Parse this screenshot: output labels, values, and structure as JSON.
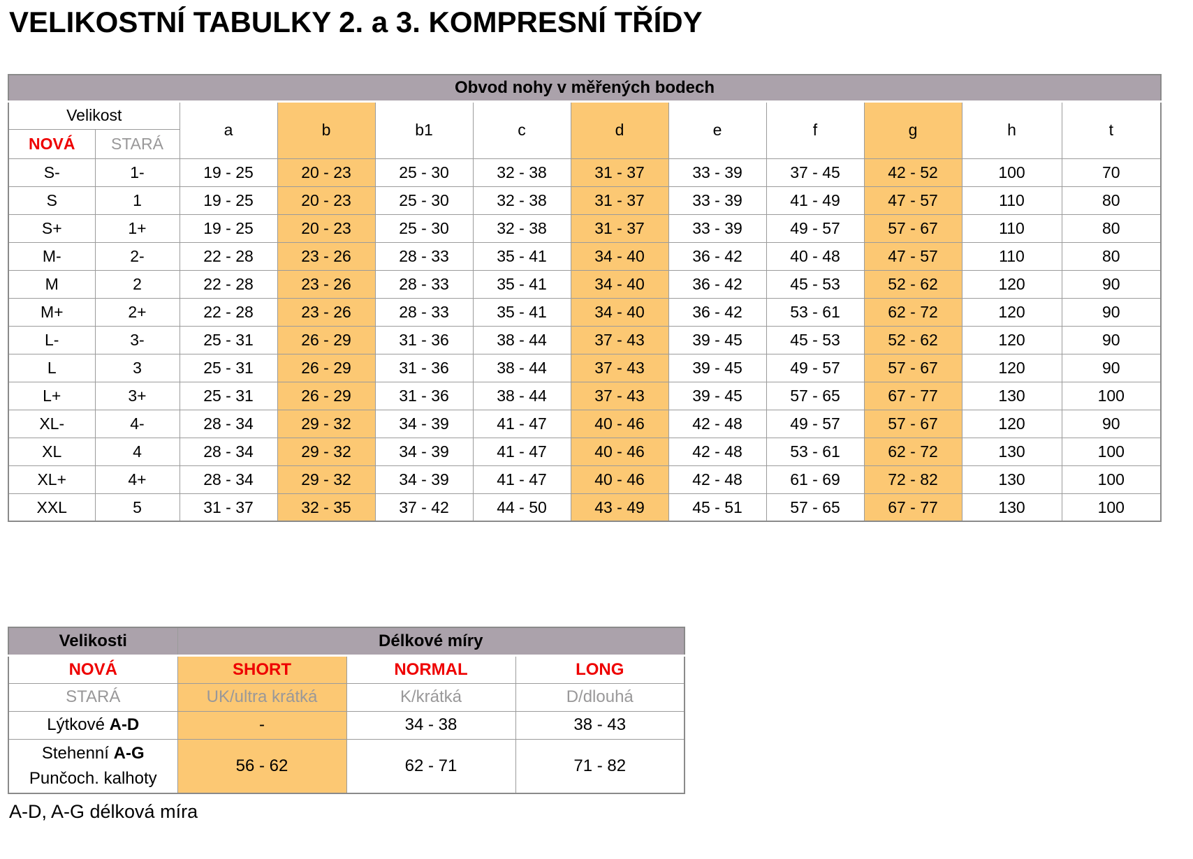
{
  "title": "VELIKOSTNÍ TABULKY 2. a 3. KOMPRESNÍ TŘÍDY",
  "colors": {
    "header_bg": "#aba2ab",
    "highlight_orange": "#fcc873",
    "accent_red": "#ee0000",
    "muted_gray": "#999899"
  },
  "main_table": {
    "caption": "Obvod nohy v měřených bodech",
    "size_label": "Velikost",
    "new_label": "NOVÁ",
    "old_label": "STARÁ",
    "measure_columns": [
      "a",
      "b",
      "b1",
      "c",
      "d",
      "e",
      "f",
      "g",
      "h",
      "t"
    ],
    "highlighted_columns": [
      "b",
      "d",
      "g"
    ],
    "rows": [
      {
        "new_size": "S-",
        "old_size": "1-",
        "values": [
          "19 - 25",
          "20 - 23",
          "25 - 30",
          "32 - 38",
          "31 - 37",
          "33 - 39",
          "37 - 45",
          "42 - 52",
          "100",
          "70"
        ]
      },
      {
        "new_size": "S",
        "old_size": "1",
        "values": [
          "19 - 25",
          "20 - 23",
          "25 - 30",
          "32 - 38",
          "31 - 37",
          "33 - 39",
          "41 - 49",
          "47 - 57",
          "110",
          "80"
        ]
      },
      {
        "new_size": "S+",
        "old_size": "1+",
        "values": [
          "19 - 25",
          "20 - 23",
          "25 - 30",
          "32 - 38",
          "31 - 37",
          "33 - 39",
          "49 - 57",
          "57 - 67",
          "110",
          "80"
        ]
      },
      {
        "new_size": "M-",
        "old_size": "2-",
        "values": [
          "22 - 28",
          "23 - 26",
          "28 - 33",
          "35 - 41",
          "34 - 40",
          "36 - 42",
          "40 - 48",
          "47 - 57",
          "110",
          "80"
        ]
      },
      {
        "new_size": "M",
        "old_size": "2",
        "values": [
          "22 - 28",
          "23 - 26",
          "28 - 33",
          "35 - 41",
          "34 - 40",
          "36 - 42",
          "45 - 53",
          "52 - 62",
          "120",
          "90"
        ]
      },
      {
        "new_size": "M+",
        "old_size": "2+",
        "values": [
          "22 - 28",
          "23 - 26",
          "28 - 33",
          "35 - 41",
          "34 - 40",
          "36 - 42",
          "53 - 61",
          "62 - 72",
          "120",
          "90"
        ]
      },
      {
        "new_size": "L-",
        "old_size": "3-",
        "values": [
          "25 - 31",
          "26 - 29",
          "31 - 36",
          "38 - 44",
          "37 - 43",
          "39 - 45",
          "45 - 53",
          "52 - 62",
          "120",
          "90"
        ]
      },
      {
        "new_size": "L",
        "old_size": "3",
        "values": [
          "25 - 31",
          "26 - 29",
          "31 - 36",
          "38 - 44",
          "37 - 43",
          "39 - 45",
          "49 - 57",
          "57 - 67",
          "120",
          "90"
        ]
      },
      {
        "new_size": "L+",
        "old_size": "3+",
        "values": [
          "25 - 31",
          "26 - 29",
          "31 - 36",
          "38 - 44",
          "37 - 43",
          "39 - 45",
          "57 - 65",
          "67 - 77",
          "130",
          "100"
        ]
      },
      {
        "new_size": "XL-",
        "old_size": "4-",
        "values": [
          "28 - 34",
          "29 - 32",
          "34 - 39",
          "41 - 47",
          "40 - 46",
          "42 - 48",
          "49 - 57",
          "57 - 67",
          "120",
          "90"
        ]
      },
      {
        "new_size": "XL",
        "old_size": "4",
        "values": [
          "28 - 34",
          "29 - 32",
          "34 - 39",
          "41 - 47",
          "40 - 46",
          "42 - 48",
          "53 - 61",
          "62 - 72",
          "130",
          "100"
        ]
      },
      {
        "new_size": "XL+",
        "old_size": "4+",
        "values": [
          "28 - 34",
          "29 - 32",
          "34 - 39",
          "41 - 47",
          "40 - 46",
          "42 - 48",
          "61 - 69",
          "72 - 82",
          "130",
          "100"
        ]
      },
      {
        "new_size": "XXL",
        "old_size": "5",
        "values": [
          "31 - 37",
          "32 - 35",
          "37 - 42",
          "44 - 50",
          "43 - 49",
          "45 - 51",
          "57 - 65",
          "67 - 77",
          "130",
          "100"
        ]
      }
    ]
  },
  "length_table": {
    "sizes_label": "Velikosti",
    "caption": "Délkové míry",
    "new_row": {
      "label": "NOVÁ",
      "short": "SHORT",
      "normal": "NORMAL",
      "long": "LONG"
    },
    "old_row": {
      "label": "STARÁ",
      "short": "UK/ultra krátká",
      "normal": "K/krátká",
      "long": "D/dlouhá"
    },
    "calf_row": {
      "label": "Lýtkové",
      "label_bold": "A-D",
      "short": "-",
      "normal": "34 - 38",
      "long": "38 - 43"
    },
    "thigh_row": {
      "label": "Stehenní",
      "label_bold": "A-G",
      "label_line2": "Punčoch. kalhoty",
      "short": "56 - 62",
      "normal": "62 - 71",
      "long": "71 - 82"
    }
  },
  "footnote": "A-D, A-G délková míra"
}
